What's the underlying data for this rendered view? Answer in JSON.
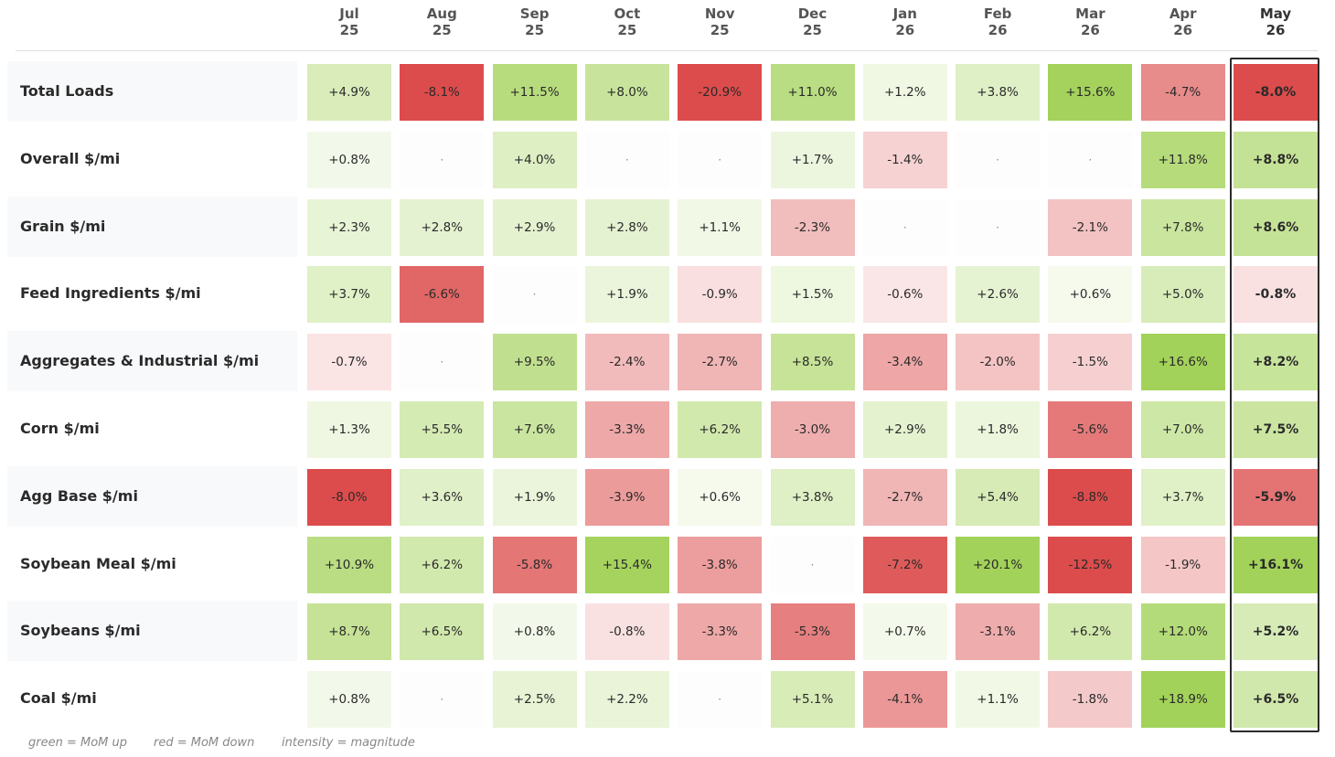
{
  "chart_data": {
    "type": "heatmap",
    "columns": [
      {
        "month": "Jul",
        "year": "25"
      },
      {
        "month": "Aug",
        "year": "25"
      },
      {
        "month": "Sep",
        "year": "25"
      },
      {
        "month": "Oct",
        "year": "25"
      },
      {
        "month": "Nov",
        "year": "25"
      },
      {
        "month": "Dec",
        "year": "25"
      },
      {
        "month": "Jan",
        "year": "26"
      },
      {
        "month": "Feb",
        "year": "26"
      },
      {
        "month": "Mar",
        "year": "26"
      },
      {
        "month": "Apr",
        "year": "26"
      },
      {
        "month": "May",
        "year": "26"
      }
    ],
    "highlighted_column": "May 26",
    "rows": [
      {
        "label": "Total Loads",
        "values": [
          4.9,
          -8.1,
          11.5,
          8.0,
          -20.9,
          11.0,
          1.2,
          3.8,
          15.6,
          -4.7,
          -8.0
        ]
      },
      {
        "label": "Overall $/mi",
        "values": [
          0.8,
          null,
          4.0,
          null,
          null,
          1.7,
          -1.4,
          null,
          null,
          11.8,
          8.8
        ]
      },
      {
        "label": "Grain $/mi",
        "values": [
          2.3,
          2.8,
          2.9,
          2.8,
          1.1,
          -2.3,
          null,
          null,
          -2.1,
          7.8,
          8.6
        ]
      },
      {
        "label": "Feed Ingredients $/mi",
        "values": [
          3.7,
          -6.6,
          null,
          1.9,
          -0.9,
          1.5,
          -0.6,
          2.6,
          0.6,
          5.0,
          -0.8
        ]
      },
      {
        "label": "Aggregates & Industrial $/mi",
        "values": [
          -0.7,
          null,
          9.5,
          -2.4,
          -2.7,
          8.5,
          -3.4,
          -2.0,
          -1.5,
          16.6,
          8.2
        ]
      },
      {
        "label": "Corn $/mi",
        "values": [
          1.3,
          5.5,
          7.6,
          -3.3,
          6.2,
          -3.0,
          2.9,
          1.8,
          -5.6,
          7.0,
          7.5
        ]
      },
      {
        "label": "Agg Base $/mi",
        "values": [
          -8.0,
          3.6,
          1.9,
          -3.9,
          0.6,
          3.8,
          -2.7,
          5.4,
          -8.8,
          3.7,
          -5.9
        ]
      },
      {
        "label": "Soybean Meal $/mi",
        "values": [
          10.9,
          6.2,
          -5.8,
          15.4,
          -3.8,
          null,
          -7.2,
          20.1,
          -12.5,
          -1.9,
          16.1
        ]
      },
      {
        "label": "Soybeans $/mi",
        "values": [
          8.7,
          6.5,
          0.8,
          -0.8,
          -3.3,
          -5.3,
          0.7,
          -3.1,
          6.2,
          12.0,
          5.2
        ]
      },
      {
        "label": "Coal $/mi",
        "values": [
          0.8,
          null,
          2.5,
          2.2,
          null,
          5.1,
          -4.1,
          1.1,
          -1.8,
          18.9,
          6.5
        ]
      }
    ],
    "value_format": "signed percent, one decimal",
    "missing_symbol": "·",
    "colors": {
      "positive": "#a3d25a",
      "negative": "#dc4c4c",
      "neutral": "#ffffff",
      "label_band": "#f8f9fb",
      "highlight_border": "#2b2b2b"
    },
    "legend": [
      "green = MoM up",
      "red = MoM down",
      "intensity = magnitude"
    ]
  }
}
